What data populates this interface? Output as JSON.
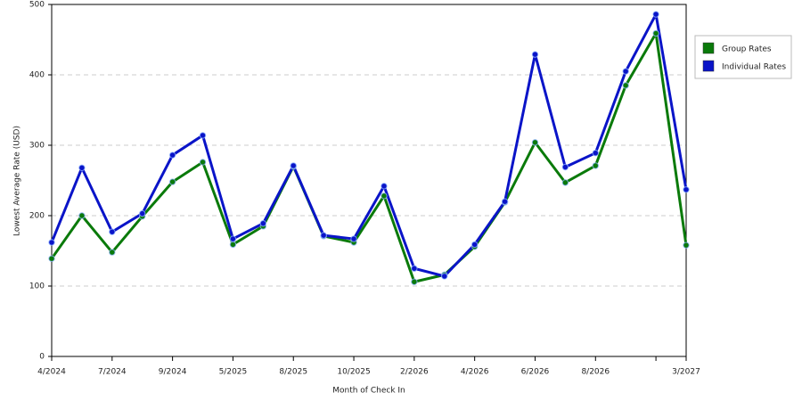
{
  "chart_data": {
    "type": "line",
    "x_label": "Month of Check In",
    "y_label": "Lowest Average Rate (USD)",
    "categories": [
      "4/2024",
      null,
      "7/2024",
      null,
      "9/2024",
      null,
      "5/2025",
      null,
      "8/2025",
      null,
      "10/2025",
      null,
      "2/2026",
      null,
      "4/2026",
      null,
      "6/2026",
      null,
      "8/2026",
      null,
      null,
      "3/2027"
    ],
    "series": [
      {
        "name": "Group Rates",
        "color": "#0a7a0a",
        "values": [
          139,
          200,
          148,
          199,
          248,
          276,
          159,
          185,
          270,
          171,
          162,
          228,
          106,
          116,
          156,
          219,
          304,
          247,
          271,
          385,
          459,
          158
        ]
      },
      {
        "name": "Individual Rates",
        "color": "#0a14c8",
        "values": [
          162,
          268,
          177,
          203,
          286,
          314,
          167,
          189,
          271,
          172,
          167,
          242,
          125,
          114,
          159,
          220,
          429,
          269,
          289,
          405,
          486,
          237
        ]
      }
    ],
    "ylim": [
      0,
      500
    ],
    "yticks": [
      0,
      100,
      200,
      300,
      400,
      500
    ],
    "grid": true,
    "legend": "right"
  }
}
